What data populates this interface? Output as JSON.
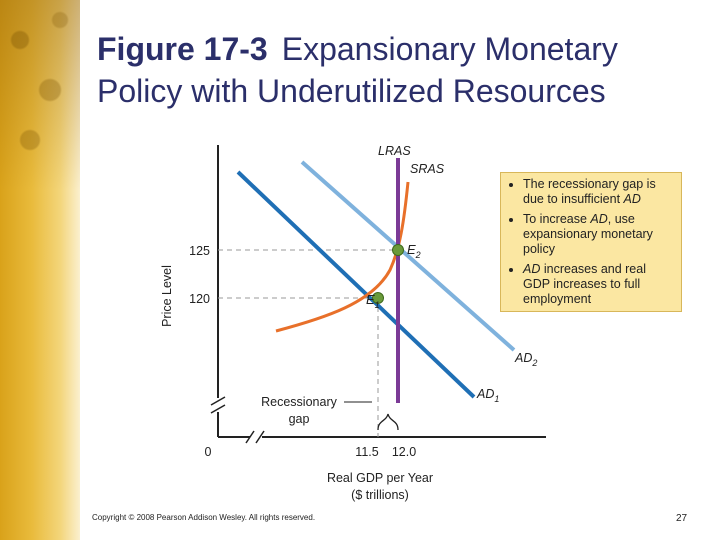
{
  "title": {
    "figure": "Figure 17-3",
    "text": "Expansionary Monetary Policy with Underutilized Resources"
  },
  "diagram": {
    "y_axis_label": "Price Level",
    "x_axis_label_line1": "Real GDP per Year",
    "x_axis_label_line2": "($ trillions)",
    "origin_label": "0",
    "y_ticks": [
      "125",
      "120"
    ],
    "x_ticks": [
      "11.5",
      "12.0"
    ],
    "curves": {
      "lras": "LRAS",
      "sras": "SRAS",
      "ad1": "AD",
      "ad1_sub": "1",
      "ad2": "AD",
      "ad2_sub": "2"
    },
    "points": {
      "e1": "E",
      "e1_sub": "1",
      "e2": "E",
      "e2_sub": "2"
    },
    "gap_label_line1": "Recessionary",
    "gap_label_line2": "gap",
    "colors": {
      "lras": "#7b3a96",
      "sras": "#e8702a",
      "ad1": "#1f6fb5",
      "ad2": "#7fb2dd",
      "point": "#6a9a3a",
      "title": "#2b2f6a",
      "note_box": "#fbe7a2"
    }
  },
  "notes": [
    {
      "before": "The recessionary gap is due to insufficient ",
      "em": "AD",
      "after": ""
    },
    {
      "before": "To increase ",
      "em": "AD",
      "after": ", use expansionary monetary policy"
    },
    {
      "before": "",
      "em": "AD",
      "after": " increases and real GDP increases to full employment"
    }
  ],
  "footer": {
    "copyright": "Copyright © 2008 Pearson Addison Wesley. All rights reserved.",
    "page_number": "27"
  }
}
